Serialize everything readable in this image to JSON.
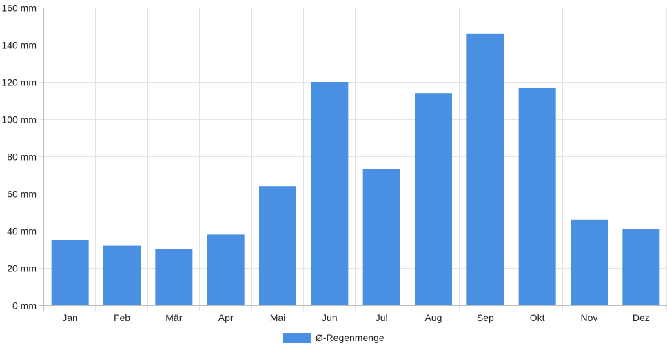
{
  "chart_data": {
    "type": "bar",
    "categories": [
      "Jan",
      "Feb",
      "Mär",
      "Apr",
      "Mai",
      "Jun",
      "Jul",
      "Aug",
      "Sep",
      "Okt",
      "Nov",
      "Dez"
    ],
    "series": [
      {
        "name": "Ø-Regenmenge",
        "color": "#4a90e2",
        "values": [
          35,
          32,
          30,
          38,
          64,
          120,
          73,
          114,
          146,
          117,
          46,
          41
        ]
      }
    ],
    "ylim": [
      0,
      160
    ],
    "y_ticks": [
      0,
      20,
      40,
      60,
      80,
      100,
      120,
      140,
      160
    ],
    "y_unit": "mm",
    "grid": true,
    "legend_position": "bottom"
  }
}
